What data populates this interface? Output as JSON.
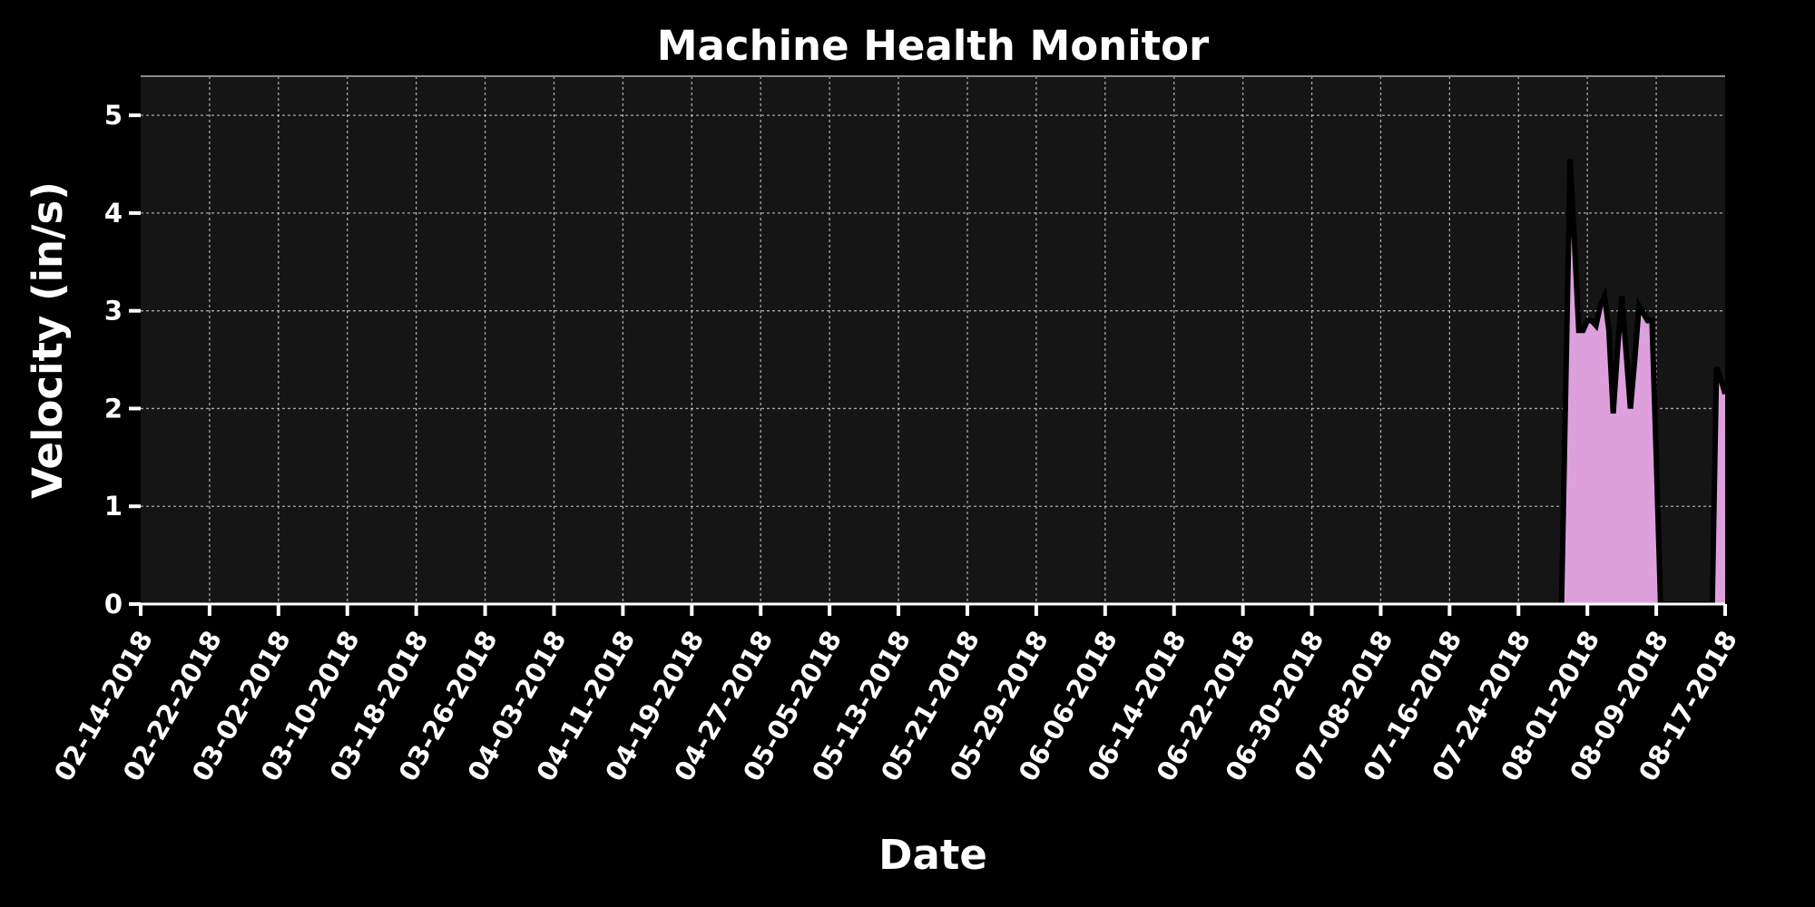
{
  "chart_data": {
    "type": "area",
    "title": "Machine Health Monitor",
    "xlabel": "Date",
    "ylabel": "Velocity (in/s)",
    "xlim": [
      "2018-02-14",
      "2018-08-17"
    ],
    "ylim": [
      0,
      5.4
    ],
    "x_ticks": [
      "02-14-2018",
      "02-22-2018",
      "03-02-2018",
      "03-10-2018",
      "03-18-2018",
      "03-26-2018",
      "04-03-2018",
      "04-11-2018",
      "04-19-2018",
      "04-27-2018",
      "05-05-2018",
      "05-13-2018",
      "05-21-2018",
      "05-29-2018",
      "06-06-2018",
      "06-14-2018",
      "06-22-2018",
      "06-30-2018",
      "07-08-2018",
      "07-16-2018",
      "07-24-2018",
      "08-01-2018",
      "08-09-2018",
      "08-17-2018"
    ],
    "y_ticks": [
      "0",
      "1",
      "2",
      "3",
      "4",
      "5"
    ],
    "grid": true,
    "colors": {
      "background": "#000000",
      "plot_area": "#151515",
      "fill": "#dda0dd",
      "line": "#000000",
      "grid": "#d8d8d8",
      "text": "#ffffff"
    },
    "series": [
      {
        "x": [
          "2018-07-29 00:00",
          "2018-07-30 00:00",
          "2018-07-30 12:00",
          "2018-07-31 00:00",
          "2018-07-31 12:00",
          "2018-08-01 00:00",
          "2018-08-01 12:00",
          "2018-08-02 00:00",
          "2018-08-02 12:00",
          "2018-08-03 00:00",
          "2018-08-03 12:00",
          "2018-08-04 00:00",
          "2018-08-04 12:00",
          "2018-08-05 00:00",
          "2018-08-06 00:00",
          "2018-08-06 12:00",
          "2018-08-07 00:00",
          "2018-08-08 00:00",
          "2018-08-08 12:00",
          "2018-08-09 00:00",
          "2018-08-09 12:00",
          "2018-08-10 00:00",
          "2018-08-15 12:00",
          "2018-08-16 00:00",
          "2018-08-16 12:00",
          "2018-08-17 00:00"
        ],
        "y": [
          0,
          4.55,
          3.7,
          2.8,
          2.8,
          2.9,
          2.9,
          2.85,
          3.05,
          3.15,
          2.8,
          1.95,
          2.6,
          3.15,
          2.0,
          2.5,
          3.05,
          2.9,
          2.9,
          1.5,
          0,
          0,
          0,
          2.42,
          2.3,
          2.15
        ]
      }
    ]
  }
}
